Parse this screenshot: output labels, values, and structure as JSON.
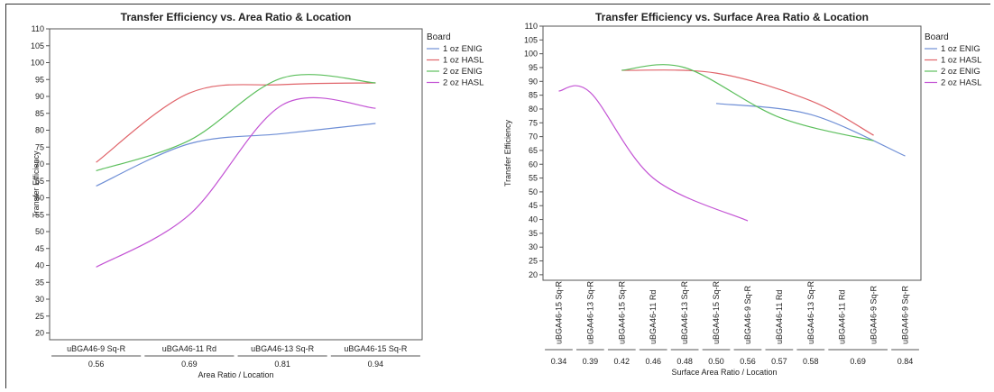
{
  "chart_data": [
    {
      "type": "line",
      "title": "Transfer Efficiency vs. Area Ratio & Location",
      "xlabel": "Area Ratio / Location",
      "ylabel": "Transfer Efficiency",
      "ylim": [
        18,
        110
      ],
      "yticks": [
        20,
        25,
        30,
        35,
        40,
        45,
        50,
        55,
        60,
        65,
        70,
        75,
        80,
        85,
        90,
        95,
        100,
        105,
        110
      ],
      "categories": [
        {
          "location": "uBGA46-9 Sq-R",
          "ratio": "0.56"
        },
        {
          "location": "uBGA46-11 Rd",
          "ratio": "0.69"
        },
        {
          "location": "uBGA46-13 Sq-R",
          "ratio": "0.81"
        },
        {
          "location": "uBGA46-15 Sq-R",
          "ratio": "0.94"
        }
      ],
      "legend": {
        "title": "Board",
        "placement": "right"
      },
      "series": [
        {
          "name": "1 oz ENIG",
          "color": "#6f8fd6",
          "values": [
            63.5,
            76,
            79,
            82
          ]
        },
        {
          "name": "1 oz HASL",
          "color": "#e0646a",
          "values": [
            70.5,
            91,
            93.5,
            94
          ]
        },
        {
          "name": "2 oz ENIG",
          "color": "#5cbf5c",
          "values": [
            68,
            77,
            95.5,
            94
          ]
        },
        {
          "name": "2 oz HASL",
          "color": "#c353d4",
          "values": [
            39.5,
            55,
            87.5,
            86.5
          ]
        }
      ]
    },
    {
      "type": "line",
      "title": "Transfer Efficiency vs. Surface Area Ratio & Location",
      "xlabel": "Surface Area Ratio / Location",
      "ylabel": "Transfer Efficiency",
      "ylim": [
        18,
        110
      ],
      "yticks": [
        20,
        25,
        30,
        35,
        40,
        45,
        50,
        55,
        60,
        65,
        70,
        75,
        80,
        85,
        90,
        95,
        100,
        105,
        110
      ],
      "locations": [
        "uBGA46-15 Sq-R",
        "uBGA46-13 Sq-R",
        "uBGA46-15 Sq-R",
        "uBGA46-11 Rd",
        "uBGA46-13 Sq-R",
        "uBGA46-15 Sq-R",
        "uBGA46-9 Sq-R",
        "uBGA46-11 Rd",
        "uBGA46-13 Sq-R",
        "uBGA46-11 Rd",
        "uBGA46-9 Sq-R",
        "uBGA46-9 Sq-R"
      ],
      "ratio_groups": [
        {
          "label": "0.34",
          "span": [
            0,
            0
          ]
        },
        {
          "label": "0.39",
          "span": [
            1,
            1
          ]
        },
        {
          "label": "0.42",
          "span": [
            2,
            2
          ]
        },
        {
          "label": "0.46",
          "span": [
            3,
            3
          ]
        },
        {
          "label": "0.48",
          "span": [
            4,
            4
          ]
        },
        {
          "label": "0.50",
          "span": [
            5,
            5
          ]
        },
        {
          "label": "0.56",
          "span": [
            6,
            6
          ]
        },
        {
          "label": "0.57",
          "span": [
            7,
            7
          ]
        },
        {
          "label": "0.58",
          "span": [
            8,
            8
          ]
        },
        {
          "label": "0.69",
          "span": [
            9,
            10
          ]
        },
        {
          "label": "0.84",
          "span": [
            11,
            11
          ]
        }
      ],
      "legend": {
        "title": "Board",
        "placement": "right"
      },
      "series": [
        {
          "name": "1 oz ENIG",
          "color": "#6f8fd6",
          "x": [
            5,
            8,
            11
          ],
          "values": [
            82,
            78,
            63
          ]
        },
        {
          "name": "1 oz HASL",
          "color": "#e0646a",
          "x": [
            2,
            5,
            8,
            10
          ],
          "values": [
            94,
            93,
            83,
            70.5
          ]
        },
        {
          "name": "2 oz ENIG",
          "color": "#5cbf5c",
          "x": [
            2,
            4,
            7,
            10
          ],
          "values": [
            94,
            95,
            77,
            68.5
          ]
        },
        {
          "name": "2 oz HASL",
          "color": "#c353d4",
          "x": [
            0,
            1,
            3,
            6
          ],
          "values": [
            86.5,
            86,
            55,
            39.5
          ]
        }
      ]
    }
  ]
}
